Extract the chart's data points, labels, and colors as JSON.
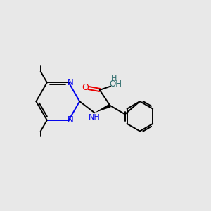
{
  "background_color": "#e8e8e8",
  "bond_color": "#000000",
  "nitrogen_color": "#0000ee",
  "oxygen_color": "#ee0000",
  "oh_color": "#2a6a6a",
  "figsize": [
    3.0,
    3.0
  ],
  "dpi": 100,
  "xlim": [
    0,
    10
  ],
  "ylim": [
    0,
    10
  ]
}
